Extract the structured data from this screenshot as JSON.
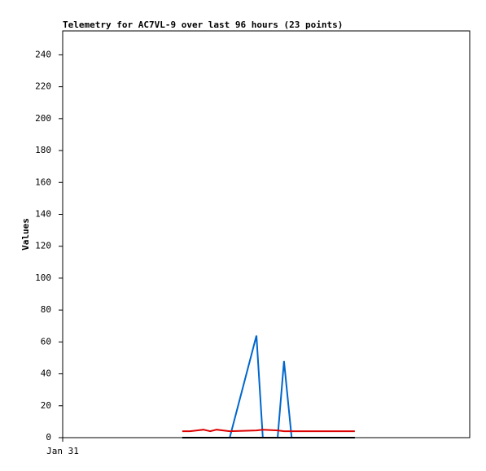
{
  "chart_data": {
    "type": "line",
    "title": "Telemetry for AC7VL-9 over last 96 hours (23 points)",
    "y_label": "Values",
    "x": [
      28.2,
      30.0,
      31.7,
      33.2,
      34.8,
      36.3,
      39.4,
      45.7,
      47.2,
      50.7,
      52.2,
      54.0,
      55.5,
      57.0,
      58.6,
      60.1,
      61.6,
      63.0,
      64.3,
      65.7,
      67.0,
      68.0,
      68.9
    ],
    "series": [
      {
        "color": "#0066cc",
        "values": [
          0,
          0,
          0,
          0,
          0,
          0,
          0,
          64,
          0,
          0,
          48,
          0,
          0,
          0,
          0,
          0,
          0,
          0,
          0,
          0,
          0,
          0,
          0
        ]
      },
      {
        "color": "#dd0000",
        "values": [
          4,
          4,
          4.5,
          5,
          4,
          5,
          4,
          4.5,
          5,
          4.5,
          4,
          4,
          4,
          4,
          4,
          4,
          4,
          4,
          4,
          4,
          4,
          4,
          4
        ]
      },
      {
        "color": "#000000",
        "values": [
          0,
          0,
          0,
          0,
          0,
          0,
          0,
          0,
          0,
          0,
          0,
          0,
          0,
          0,
          0,
          0,
          0,
          0,
          0,
          0,
          0,
          0,
          0
        ]
      }
    ],
    "xlim": [
      0,
      96
    ],
    "xticks": [
      {
        "value": 0,
        "label": "Jan 31"
      }
    ],
    "ylim": [
      0,
      255
    ],
    "yticks": [
      0,
      20,
      40,
      60,
      80,
      100,
      120,
      140,
      160,
      180,
      200,
      220,
      240
    ],
    "grid": false
  }
}
